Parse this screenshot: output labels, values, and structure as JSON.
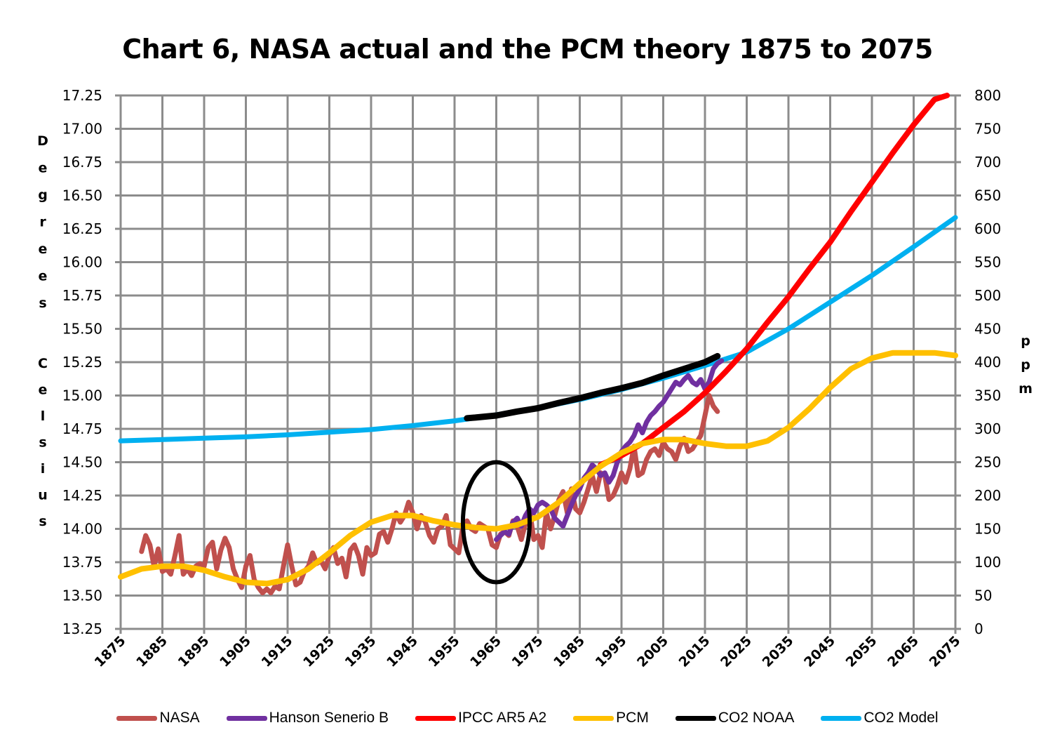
{
  "chart_data": {
    "type": "line",
    "title": "Chart 6, NASA actual and the PCM theory 1875 to 2075",
    "xlabel": "",
    "ylabel": "Degrees Celsius",
    "ylabel_right": "ppm",
    "xlim": [
      1875,
      2075
    ],
    "ylim": [
      13.25,
      17.25
    ],
    "ylim_right": [
      0,
      800
    ],
    "grid": true,
    "legend_position": "bottom",
    "x_ticks": [
      "1875",
      "1885",
      "1895",
      "1905",
      "1915",
      "1925",
      "1935",
      "1945",
      "1955",
      "1965",
      "1975",
      "1985",
      "1995",
      "2005",
      "2015",
      "2025",
      "2035",
      "2045",
      "2055",
      "2065",
      "2075"
    ],
    "y_ticks": [
      "17.25",
      "17.00",
      "16.75",
      "16.50",
      "16.25",
      "16.00",
      "15.75",
      "15.50",
      "15.25",
      "15.00",
      "14.75",
      "14.50",
      "14.25",
      "14.00",
      "13.75",
      "13.50",
      "13.25"
    ],
    "y_ticks_right": [
      "800",
      "750",
      "700",
      "650",
      "600",
      "550",
      "500",
      "450",
      "400",
      "350",
      "300",
      "250",
      "200",
      "150",
      "100",
      "50",
      "0"
    ],
    "series": [
      {
        "name": "NASA",
        "axis": "left",
        "color": "#c0504d",
        "x": [
          1880,
          1881,
          1882,
          1883,
          1884,
          1885,
          1886,
          1887,
          1888,
          1889,
          1890,
          1891,
          1892,
          1893,
          1894,
          1895,
          1896,
          1897,
          1898,
          1899,
          1900,
          1901,
          1902,
          1903,
          1904,
          1905,
          1906,
          1907,
          1908,
          1909,
          1910,
          1911,
          1912,
          1913,
          1914,
          1915,
          1916,
          1917,
          1918,
          1919,
          1920,
          1921,
          1922,
          1923,
          1924,
          1925,
          1926,
          1927,
          1928,
          1929,
          1930,
          1931,
          1932,
          1933,
          1934,
          1935,
          1936,
          1937,
          1938,
          1939,
          1940,
          1941,
          1942,
          1943,
          1944,
          1945,
          1946,
          1947,
          1948,
          1949,
          1950,
          1951,
          1952,
          1953,
          1954,
          1955,
          1956,
          1957,
          1958,
          1959,
          1960,
          1961,
          1962,
          1963,
          1964,
          1965,
          1966,
          1967,
          1968,
          1969,
          1970,
          1971,
          1972,
          1973,
          1974,
          1975,
          1976,
          1977,
          1978,
          1979,
          1980,
          1981,
          1982,
          1983,
          1984,
          1985,
          1986,
          1987,
          1988,
          1989,
          1990,
          1991,
          1992,
          1993,
          1994,
          1995,
          1996,
          1997,
          1998,
          1999,
          2000,
          2001,
          2002,
          2003,
          2004,
          2005,
          2006,
          2007,
          2008,
          2009,
          2010,
          2011,
          2012,
          2013,
          2014,
          2015,
          2016,
          2017,
          2018
        ],
        "values": [
          13.83,
          13.95,
          13.88,
          13.72,
          13.85,
          13.68,
          13.7,
          13.66,
          13.8,
          13.95,
          13.66,
          13.7,
          13.65,
          13.72,
          13.74,
          13.72,
          13.86,
          13.9,
          13.7,
          13.84,
          13.93,
          13.86,
          13.7,
          13.62,
          13.56,
          13.72,
          13.8,
          13.62,
          13.56,
          13.52,
          13.55,
          13.52,
          13.57,
          13.55,
          13.72,
          13.88,
          13.72,
          13.58,
          13.6,
          13.68,
          13.72,
          13.82,
          13.74,
          13.76,
          13.7,
          13.8,
          13.86,
          13.74,
          13.78,
          13.64,
          13.84,
          13.88,
          13.8,
          13.66,
          13.86,
          13.8,
          13.82,
          13.96,
          13.98,
          13.9,
          14.0,
          14.12,
          14.05,
          14.1,
          14.2,
          14.12,
          14.0,
          14.1,
          14.05,
          13.95,
          13.9,
          14.0,
          14.02,
          14.1,
          13.88,
          13.85,
          13.82,
          14.02,
          14.06,
          14.0,
          13.98,
          14.04,
          14.02,
          14.0,
          13.88,
          13.86,
          13.96,
          13.98,
          13.95,
          14.06,
          14.02,
          13.92,
          14.04,
          14.14,
          13.92,
          13.95,
          13.86,
          14.12,
          14.0,
          14.1,
          14.22,
          14.28,
          14.12,
          14.3,
          14.15,
          14.12,
          14.2,
          14.3,
          14.4,
          14.28,
          14.42,
          14.4,
          14.22,
          14.25,
          14.32,
          14.42,
          14.35,
          14.45,
          14.62,
          14.4,
          14.42,
          14.52,
          14.58,
          14.6,
          14.55,
          14.65,
          14.6,
          14.58,
          14.52,
          14.62,
          14.68,
          14.58,
          14.6,
          14.65,
          14.7,
          14.85,
          15.0,
          14.92,
          14.88
        ]
      },
      {
        "name": "Hanson Senerio B",
        "axis": "left",
        "color": "#7030a0",
        "x": [
          1965,
          1966,
          1967,
          1968,
          1969,
          1970,
          1971,
          1972,
          1973,
          1974,
          1975,
          1976,
          1977,
          1978,
          1979,
          1980,
          1981,
          1982,
          1983,
          1984,
          1985,
          1986,
          1987,
          1988,
          1989,
          1990,
          1991,
          1992,
          1993,
          1994,
          1995,
          1996,
          1997,
          1998,
          1999,
          2000,
          2001,
          2002,
          2003,
          2004,
          2005,
          2006,
          2007,
          2008,
          2009,
          2010,
          2011,
          2012,
          2013,
          2014,
          2015,
          2016,
          2017,
          2018,
          2019
        ],
        "values": [
          13.92,
          13.95,
          13.98,
          13.96,
          14.05,
          14.08,
          14.02,
          14.1,
          14.15,
          14.12,
          14.18,
          14.2,
          14.18,
          14.15,
          14.08,
          14.05,
          14.02,
          14.1,
          14.18,
          14.25,
          14.3,
          14.38,
          14.42,
          14.48,
          14.45,
          14.4,
          14.42,
          14.35,
          14.4,
          14.5,
          14.58,
          14.62,
          14.65,
          14.7,
          14.78,
          14.72,
          14.8,
          14.85,
          14.88,
          14.92,
          14.95,
          15.0,
          15.05,
          15.1,
          15.08,
          15.12,
          15.15,
          15.1,
          15.08,
          15.12,
          15.05,
          15.1,
          15.2,
          15.24,
          15.26
        ]
      },
      {
        "name": "IPCC AR5 A2",
        "axis": "left",
        "color": "#ff0000",
        "x": [
          1990,
          1995,
          2000,
          2005,
          2010,
          2015,
          2020,
          2025,
          2030,
          2035,
          2040,
          2045,
          2050,
          2055,
          2060,
          2065,
          2070,
          2073
        ],
        "values": [
          14.48,
          14.55,
          14.64,
          14.76,
          14.88,
          15.02,
          15.18,
          15.35,
          15.55,
          15.74,
          15.95,
          16.15,
          16.38,
          16.6,
          16.82,
          17.03,
          17.22,
          17.25
        ]
      },
      {
        "name": "PCM",
        "axis": "left",
        "color": "#ffc000",
        "x": [
          1875,
          1880,
          1885,
          1890,
          1895,
          1900,
          1905,
          1910,
          1915,
          1920,
          1925,
          1930,
          1935,
          1940,
          1945,
          1950,
          1955,
          1960,
          1965,
          1970,
          1975,
          1980,
          1985,
          1990,
          1995,
          2000,
          2005,
          2010,
          2015,
          2020,
          2025,
          2030,
          2035,
          2040,
          2045,
          2050,
          2055,
          2060,
          2065,
          2070,
          2075
        ],
        "values": [
          13.64,
          13.7,
          13.72,
          13.72,
          13.69,
          13.64,
          13.6,
          13.59,
          13.62,
          13.7,
          13.82,
          13.95,
          14.05,
          14.1,
          14.1,
          14.06,
          14.03,
          14.01,
          14.0,
          14.03,
          14.09,
          14.2,
          14.34,
          14.47,
          14.57,
          14.64,
          14.67,
          14.67,
          14.64,
          14.62,
          14.62,
          14.66,
          14.76,
          14.9,
          15.06,
          15.2,
          15.28,
          15.32,
          15.32,
          15.32,
          15.3
        ]
      },
      {
        "name": "CO2 NOAA",
        "axis": "right",
        "color": "#000000",
        "x": [
          1958,
          1960,
          1965,
          1970,
          1975,
          1980,
          1985,
          1990,
          1995,
          2000,
          2005,
          2010,
          2015,
          2018
        ],
        "values": [
          316,
          317,
          320,
          326,
          331,
          339,
          346,
          354,
          361,
          369,
          380,
          390,
          400,
          409
        ]
      },
      {
        "name": "CO2 Model",
        "axis": "right",
        "color": "#00b0f0",
        "x": [
          1875,
          1885,
          1895,
          1905,
          1915,
          1925,
          1935,
          1945,
          1955,
          1965,
          1975,
          1985,
          1995,
          2005,
          2015,
          2025,
          2035,
          2045,
          2055,
          2065,
          2075
        ],
        "values": [
          282,
          284,
          286,
          288,
          291,
          295,
          299,
          305,
          312,
          321,
          331,
          344,
          359,
          376,
          395,
          415,
          450,
          490,
          530,
          573,
          617
        ]
      }
    ],
    "annotations": [
      {
        "type": "circle",
        "center_x": 1965,
        "center_y": 14.05,
        "radius_x_years": 8,
        "radius_y_deg": 0.45,
        "color": "#000000"
      }
    ]
  }
}
